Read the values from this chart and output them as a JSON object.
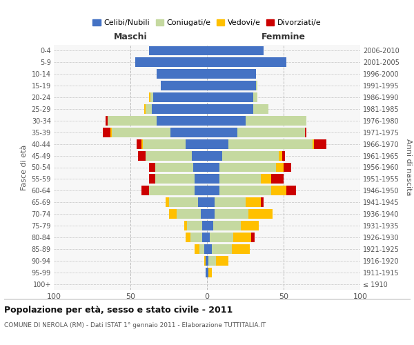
{
  "age_groups": [
    "100+",
    "95-99",
    "90-94",
    "85-89",
    "80-84",
    "75-79",
    "70-74",
    "65-69",
    "60-64",
    "55-59",
    "50-54",
    "45-49",
    "40-44",
    "35-39",
    "30-34",
    "25-29",
    "20-24",
    "15-19",
    "10-14",
    "5-9",
    "0-4"
  ],
  "birth_years": [
    "≤ 1910",
    "1911-1915",
    "1916-1920",
    "1921-1925",
    "1926-1930",
    "1931-1935",
    "1936-1940",
    "1941-1945",
    "1946-1950",
    "1951-1955",
    "1956-1960",
    "1961-1965",
    "1966-1970",
    "1971-1975",
    "1976-1980",
    "1981-1985",
    "1986-1990",
    "1991-1995",
    "1996-2000",
    "2001-2005",
    "2006-2010"
  ],
  "maschi_celibe": [
    0,
    1,
    1,
    2,
    3,
    3,
    4,
    6,
    8,
    8,
    9,
    10,
    14,
    24,
    33,
    36,
    35,
    30,
    33,
    47,
    38
  ],
  "maschi_coniugato": [
    0,
    0,
    0,
    3,
    8,
    10,
    16,
    19,
    30,
    26,
    25,
    30,
    28,
    38,
    32,
    4,
    2,
    0,
    0,
    0,
    0
  ],
  "maschi_vedovo": [
    0,
    0,
    1,
    3,
    3,
    2,
    5,
    2,
    0,
    0,
    0,
    0,
    1,
    1,
    0,
    1,
    1,
    0,
    0,
    0,
    0
  ],
  "maschi_divorziato": [
    0,
    0,
    0,
    0,
    0,
    0,
    0,
    0,
    5,
    4,
    4,
    5,
    3,
    5,
    1,
    0,
    0,
    0,
    0,
    0,
    0
  ],
  "femmine_celibe": [
    0,
    1,
    1,
    3,
    2,
    4,
    5,
    5,
    8,
    8,
    8,
    10,
    14,
    20,
    25,
    30,
    30,
    32,
    32,
    52,
    37
  ],
  "femmine_coniugato": [
    0,
    0,
    5,
    13,
    15,
    18,
    22,
    20,
    34,
    27,
    37,
    37,
    55,
    44,
    40,
    10,
    3,
    1,
    0,
    0,
    0
  ],
  "femmine_vedovo": [
    0,
    2,
    8,
    12,
    12,
    12,
    16,
    10,
    10,
    7,
    5,
    2,
    1,
    0,
    0,
    0,
    0,
    0,
    0,
    0,
    0
  ],
  "femmine_divorziato": [
    0,
    0,
    0,
    0,
    2,
    0,
    0,
    2,
    6,
    8,
    5,
    2,
    8,
    1,
    0,
    0,
    0,
    0,
    0,
    0,
    0
  ],
  "colors": {
    "celibe": "#4472c4",
    "coniugato": "#c5d9a0",
    "vedovo": "#ffc000",
    "divorziato": "#cc0000"
  },
  "title_main": "Popolazione per età, sesso e stato civile - 2011",
  "title_sub": "COMUNE DI NEROLA (RM) - Dati ISTAT 1° gennaio 2011 - Elaborazione TUTTITALIA.IT",
  "xlabel_left": "Maschi",
  "xlabel_right": "Femmine",
  "ylabel_left": "Fasce di età",
  "ylabel_right": "Anni di nascita",
  "xlim": 100,
  "bg_color": "#ffffff",
  "plot_bg_color": "#f7f7f7",
  "grid_color": "#cccccc",
  "legend_labels": [
    "Celibi/Nubili",
    "Coniugati/e",
    "Vedovi/e",
    "Divorziati/e"
  ],
  "maschi_color": "#333333",
  "femmine_color": "#333333"
}
